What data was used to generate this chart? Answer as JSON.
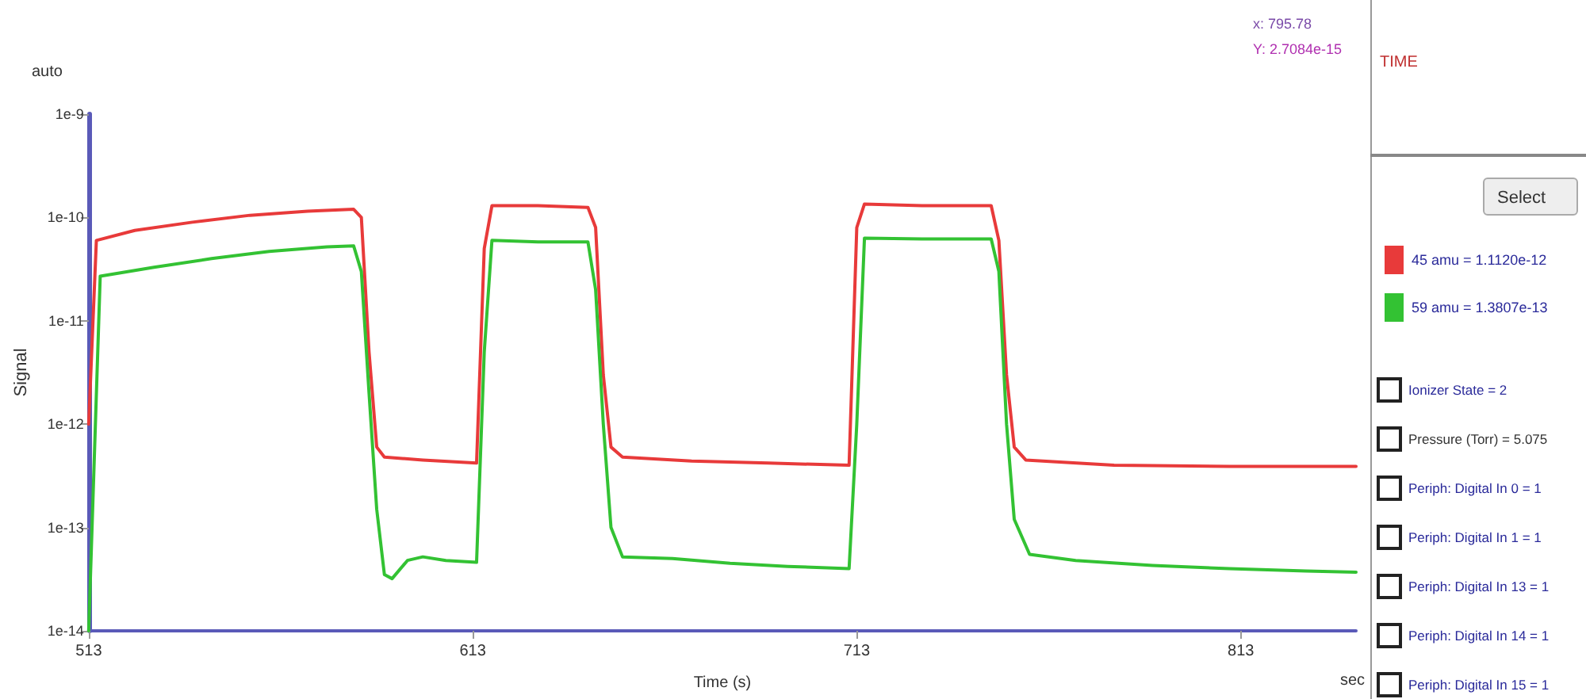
{
  "chart_data": {
    "type": "line",
    "xlabel": "Time (s)",
    "ylabel": "Signal",
    "log": "y",
    "xlim": [
      513,
      843
    ],
    "xticks": [
      513,
      613,
      713,
      813
    ],
    "ylim": [
      1e-14,
      1e-09
    ],
    "yticks": [
      {
        "value": 1e-14,
        "label": "1e-14"
      },
      {
        "value": 1e-13,
        "label": "1e-13"
      },
      {
        "value": 1e-12,
        "label": "1e-12"
      },
      {
        "value": 1e-11,
        "label": "1e-11"
      },
      {
        "value": 1e-10,
        "label": "1e-10"
      },
      {
        "value": 1e-09,
        "label": "1e-9"
      }
    ],
    "grid": false,
    "legend": "right",
    "marker": "none",
    "line_style": "solid",
    "annotations": [
      "auto",
      "sec",
      "x: 795.78",
      "Y: 2.7084e-15",
      "TIME",
      "Select",
      "Ionizer State = 2",
      "Pressure (Torr) = 5.075",
      "Periph: Digital In 0 = 1",
      "Periph: Digital In 1 = 1",
      "Periph: Digital In 13 = 1",
      "Periph: Digital In 14 = 1",
      "Periph: Digital In 15 = 1"
    ],
    "series": [
      {
        "name": "45 amu = 1.1120e-12",
        "color": "#e83a3a",
        "x": [
          513,
          515,
          525,
          540,
          555,
          570,
          582,
          584,
          586,
          588,
          590,
          600,
          614,
          616,
          618,
          630,
          643,
          645,
          647,
          649,
          652,
          670,
          690,
          711,
          713,
          715,
          730,
          748,
          750,
          752,
          754,
          757,
          780,
          810,
          843
        ],
        "values": [
          1e-12,
          6e-11,
          7.5e-11,
          9e-11,
          1.05e-10,
          1.15e-10,
          1.2e-10,
          1e-10,
          5e-12,
          6e-13,
          4.8e-13,
          4.5e-13,
          4.2e-13,
          5e-11,
          1.3e-10,
          1.3e-10,
          1.25e-10,
          8e-11,
          3e-12,
          6e-13,
          4.8e-13,
          4.4e-13,
          4.2e-13,
          4e-13,
          8e-11,
          1.35e-10,
          1.3e-10,
          1.3e-10,
          6e-11,
          3e-12,
          6e-13,
          4.5e-13,
          4e-13,
          3.9e-13,
          3.9e-13
        ]
      },
      {
        "name": "59 amu = 1.3807e-13",
        "color": "#33c233",
        "x": [
          513,
          516,
          530,
          545,
          560,
          575,
          582,
          584,
          586,
          588,
          590,
          592,
          596,
          600,
          606,
          614,
          616,
          618,
          630,
          643,
          645,
          647,
          649,
          652,
          665,
          680,
          695,
          711,
          713,
          715,
          730,
          748,
          750,
          752,
          754,
          758,
          770,
          790,
          810,
          830,
          843
        ],
        "values": [
          1e-14,
          2.7e-11,
          3.3e-11,
          4e-11,
          4.7e-11,
          5.2e-11,
          5.3e-11,
          3e-11,
          2e-12,
          1.5e-13,
          3.5e-14,
          3.2e-14,
          4.8e-14,
          5.2e-14,
          4.8e-14,
          4.6e-14,
          5e-12,
          6e-11,
          5.8e-11,
          5.8e-11,
          2e-11,
          1e-12,
          1e-13,
          5.2e-14,
          5e-14,
          4.5e-14,
          4.2e-14,
          4e-14,
          1e-12,
          6.3e-11,
          6.2e-11,
          6.2e-11,
          3e-11,
          1e-12,
          1.2e-13,
          5.5e-14,
          4.8e-14,
          4.3e-14,
          4e-14,
          3.8e-14,
          3.7e-14
        ]
      }
    ]
  }
}
